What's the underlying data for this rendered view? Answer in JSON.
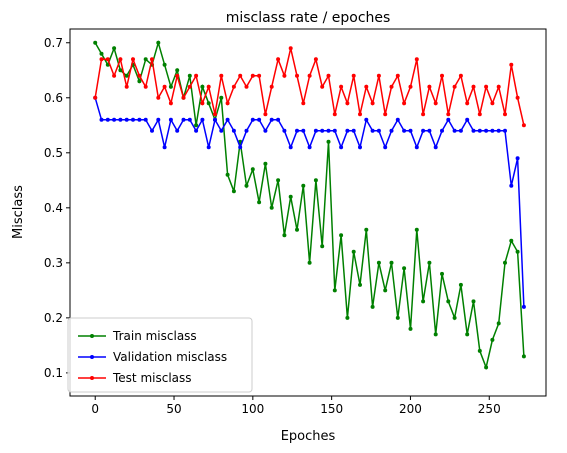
{
  "chart_data": {
    "type": "line",
    "title": "misclass rate / epoches",
    "xlabel": "Epoches",
    "ylabel": "Misclass",
    "xlim": [
      -16,
      286
    ],
    "ylim": [
      0.058,
      0.725
    ],
    "x_ticks": [
      0,
      50,
      100,
      150,
      200,
      250
    ],
    "y_ticks": [
      0.1,
      0.2,
      0.3,
      0.4,
      0.5,
      0.6,
      0.7
    ],
    "grid": false,
    "legend_position": "lower-left",
    "series": [
      {
        "name": "Train misclass",
        "color": "#008000",
        "x": [
          0,
          4,
          8,
          12,
          16,
          20,
          24,
          28,
          32,
          36,
          40,
          44,
          48,
          52,
          56,
          60,
          64,
          68,
          72,
          76,
          80,
          84,
          88,
          92,
          96,
          100,
          104,
          108,
          112,
          116,
          120,
          124,
          128,
          132,
          136,
          140,
          144,
          148,
          152,
          156,
          160,
          164,
          168,
          172,
          176,
          180,
          184,
          188,
          192,
          196,
          200,
          204,
          208,
          212,
          216,
          220,
          224,
          228,
          232,
          236,
          240,
          244,
          248,
          252,
          256,
          260,
          264,
          268,
          272
        ],
        "values": [
          0.7,
          0.68,
          0.66,
          0.69,
          0.65,
          0.64,
          0.66,
          0.63,
          0.67,
          0.66,
          0.7,
          0.66,
          0.62,
          0.65,
          0.6,
          0.64,
          0.55,
          0.62,
          0.59,
          0.56,
          0.6,
          0.46,
          0.43,
          0.52,
          0.44,
          0.47,
          0.41,
          0.48,
          0.4,
          0.45,
          0.35,
          0.42,
          0.36,
          0.44,
          0.3,
          0.45,
          0.33,
          0.52,
          0.25,
          0.35,
          0.2,
          0.32,
          0.26,
          0.36,
          0.22,
          0.3,
          0.25,
          0.3,
          0.2,
          0.29,
          0.18,
          0.36,
          0.23,
          0.3,
          0.17,
          0.28,
          0.23,
          0.2,
          0.26,
          0.17,
          0.23,
          0.14,
          0.11,
          0.16,
          0.19,
          0.3,
          0.34,
          0.32,
          0.13
        ]
      },
      {
        "name": "Validation misclass",
        "color": "#0000ff",
        "x": [
          0,
          4,
          8,
          12,
          16,
          20,
          24,
          28,
          32,
          36,
          40,
          44,
          48,
          52,
          56,
          60,
          64,
          68,
          72,
          76,
          80,
          84,
          88,
          92,
          96,
          100,
          104,
          108,
          112,
          116,
          120,
          124,
          128,
          132,
          136,
          140,
          144,
          148,
          152,
          156,
          160,
          164,
          168,
          172,
          176,
          180,
          184,
          188,
          192,
          196,
          200,
          204,
          208,
          212,
          216,
          220,
          224,
          228,
          232,
          236,
          240,
          244,
          248,
          252,
          256,
          260,
          264,
          268,
          272
        ],
        "values": [
          0.6,
          0.56,
          0.56,
          0.56,
          0.56,
          0.56,
          0.56,
          0.56,
          0.56,
          0.54,
          0.56,
          0.51,
          0.56,
          0.54,
          0.56,
          0.56,
          0.54,
          0.56,
          0.51,
          0.56,
          0.54,
          0.56,
          0.54,
          0.51,
          0.54,
          0.56,
          0.56,
          0.54,
          0.56,
          0.56,
          0.54,
          0.51,
          0.54,
          0.54,
          0.51,
          0.54,
          0.54,
          0.54,
          0.54,
          0.51,
          0.54,
          0.54,
          0.51,
          0.56,
          0.54,
          0.54,
          0.51,
          0.54,
          0.56,
          0.54,
          0.54,
          0.51,
          0.54,
          0.54,
          0.51,
          0.54,
          0.56,
          0.54,
          0.54,
          0.56,
          0.54,
          0.54,
          0.54,
          0.54,
          0.54,
          0.54,
          0.44,
          0.49,
          0.22
        ]
      },
      {
        "name": "Test misclass",
        "color": "#ff0000",
        "x": [
          0,
          4,
          8,
          12,
          16,
          20,
          24,
          28,
          32,
          36,
          40,
          44,
          48,
          52,
          56,
          60,
          64,
          68,
          72,
          76,
          80,
          84,
          88,
          92,
          96,
          100,
          104,
          108,
          112,
          116,
          120,
          124,
          128,
          132,
          136,
          140,
          144,
          148,
          152,
          156,
          160,
          164,
          168,
          172,
          176,
          180,
          184,
          188,
          192,
          196,
          200,
          204,
          208,
          212,
          216,
          220,
          224,
          228,
          232,
          236,
          240,
          244,
          248,
          252,
          256,
          260,
          264,
          268,
          272
        ],
        "values": [
          0.6,
          0.67,
          0.67,
          0.64,
          0.67,
          0.62,
          0.67,
          0.64,
          0.62,
          0.67,
          0.6,
          0.62,
          0.59,
          0.64,
          0.6,
          0.62,
          0.64,
          0.59,
          0.62,
          0.57,
          0.64,
          0.59,
          0.62,
          0.64,
          0.62,
          0.64,
          0.64,
          0.57,
          0.62,
          0.67,
          0.64,
          0.69,
          0.64,
          0.59,
          0.64,
          0.67,
          0.62,
          0.64,
          0.57,
          0.62,
          0.59,
          0.64,
          0.57,
          0.62,
          0.59,
          0.64,
          0.57,
          0.62,
          0.64,
          0.59,
          0.62,
          0.67,
          0.57,
          0.62,
          0.59,
          0.64,
          0.57,
          0.62,
          0.64,
          0.59,
          0.62,
          0.57,
          0.62,
          0.59,
          0.62,
          0.57,
          0.66,
          0.6,
          0.55
        ]
      }
    ]
  }
}
